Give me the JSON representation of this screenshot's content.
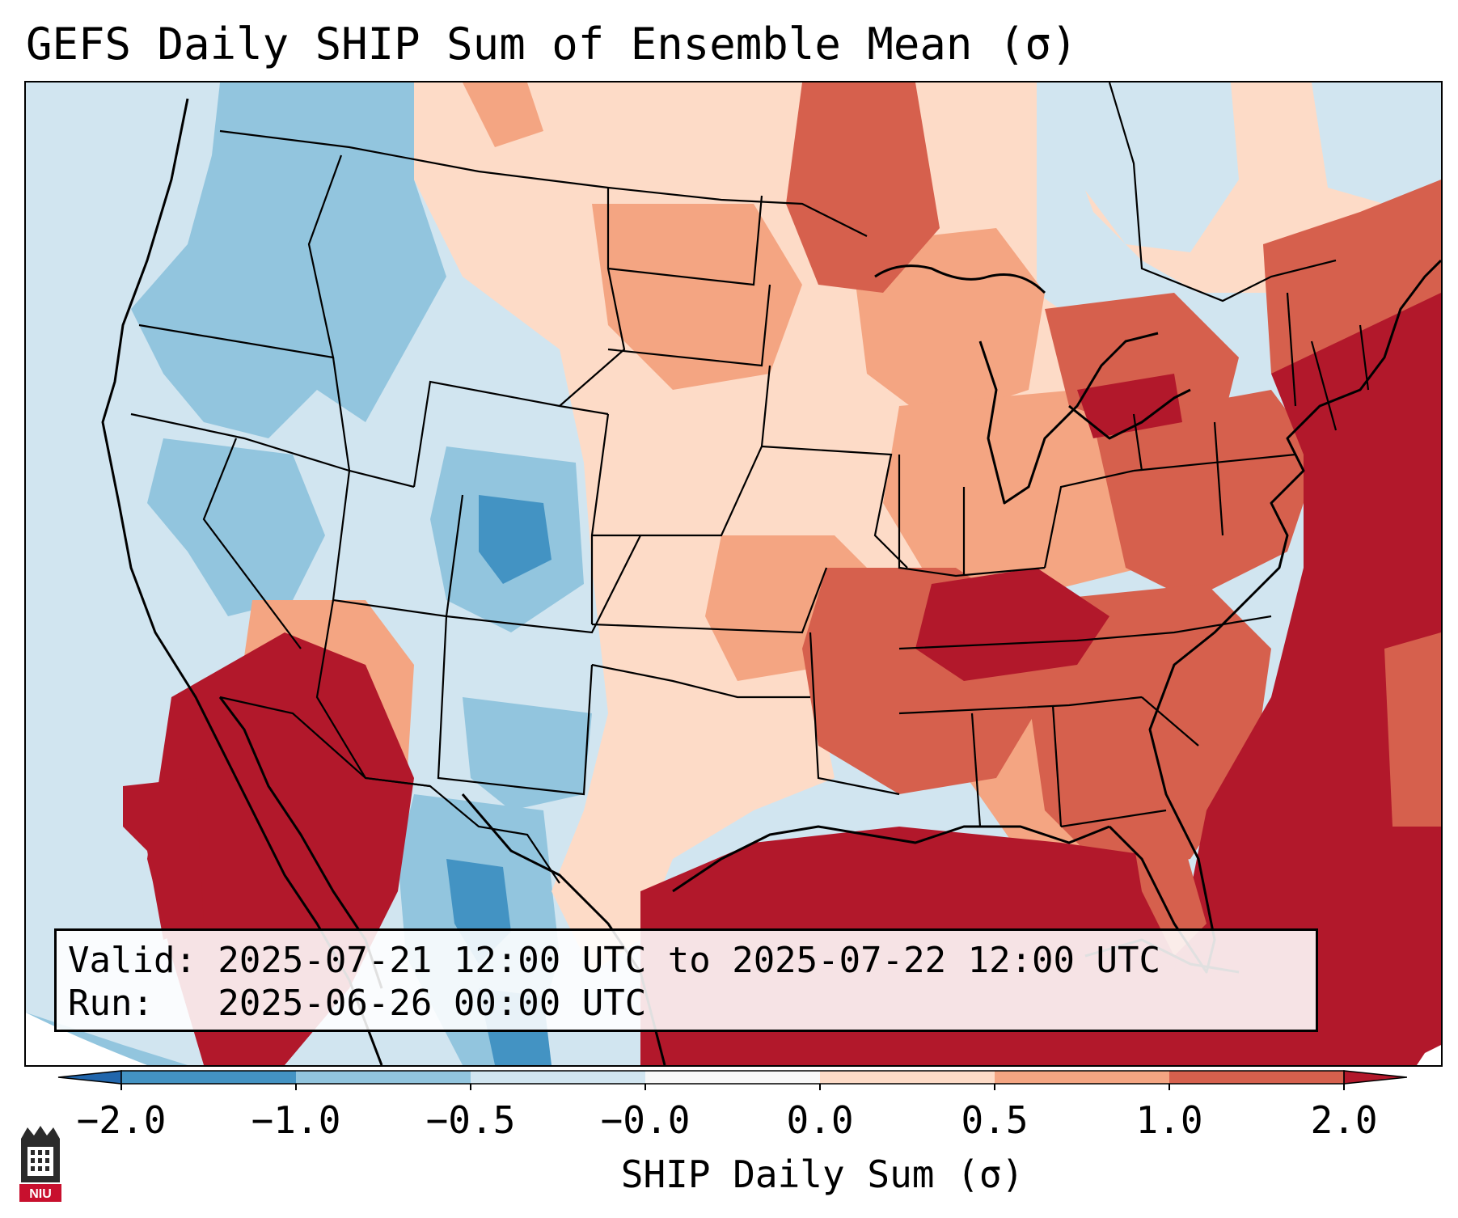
{
  "title": "GEFS Daily SHIP Sum of Ensemble Mean (σ)",
  "info": {
    "valid_line": "Valid: 2025-07-21 12:00 UTC to 2025-07-22 12:00 UTC",
    "run_line": "Run:   2025-06-26 00:00 UTC"
  },
  "colorbar": {
    "label": "SHIP Daily Sum (σ)",
    "ticks": [
      "−2.0",
      "−1.0",
      "−0.5",
      "−0.0",
      "0.0",
      "0.5",
      "1.0",
      "2.0"
    ],
    "bins": [
      {
        "from": -2.0,
        "to": -1.0,
        "color": "#4393c3"
      },
      {
        "from": -1.0,
        "to": -0.5,
        "color": "#92c5de"
      },
      {
        "from": -0.5,
        "to": -0.0,
        "color": "#d1e5f0"
      },
      {
        "from": -0.0,
        "to": 0.0,
        "color": "#f7f7f7"
      },
      {
        "from": 0.0,
        "to": 0.5,
        "color": "#fddbc7"
      },
      {
        "from": 0.5,
        "to": 1.0,
        "color": "#f4a582"
      },
      {
        "from": 1.0,
        "to": 2.0,
        "color": "#d6604d"
      }
    ],
    "under_color": "#2166ac",
    "over_color": "#b2182b"
  },
  "logo": {
    "text": "NIU",
    "icon": "niu-logo"
  }
}
